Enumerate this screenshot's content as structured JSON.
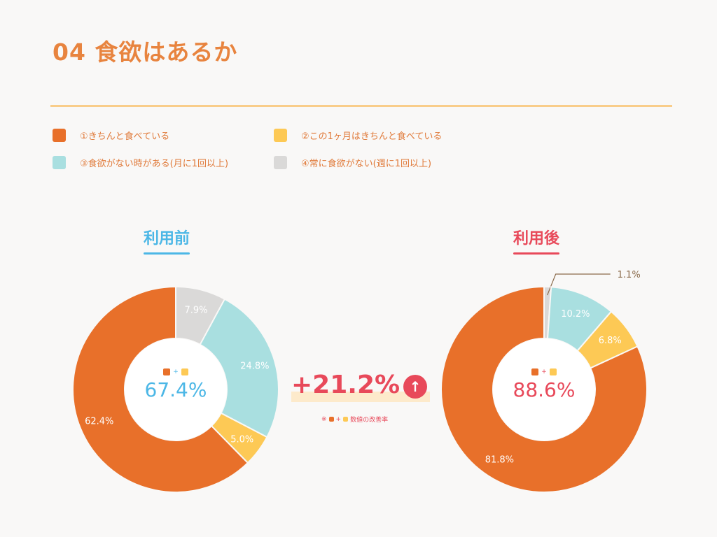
{
  "page_title": "04 食欲はあるか",
  "legend": [
    {
      "label": "①きちんと食べている",
      "color": "#e8702a"
    },
    {
      "label": "②この1ヶ月はきちんと食べている",
      "color": "#fdc955"
    },
    {
      "label": "③食欲がない時がある(月に1回以上)",
      "color": "#a9dfe0"
    },
    {
      "label": "④常に食欲がない(週に1回以上)",
      "color": "#dad9d8"
    }
  ],
  "before": {
    "heading": "利用前",
    "center_value": "67.4%",
    "accent": "#4cb7e6"
  },
  "after": {
    "heading": "利用後",
    "center_value": "88.6%",
    "accent": "#e8495a"
  },
  "improvement": {
    "value": "+21.2%",
    "arrow": "↑",
    "note": "数値の改善率",
    "note_prefix": "※",
    "plus": "+"
  },
  "center_plus": "+",
  "chart_data": [
    {
      "type": "pie",
      "title": "利用前",
      "categories": [
        "①きちんと食べている",
        "②この1ヶ月はきちんと食べている",
        "③食欲がない時がある(月に1回以上)",
        "④常に食欲がない(週に1回以上)"
      ],
      "values": [
        62.4,
        5.0,
        24.8,
        7.9
      ],
      "labels": [
        "62.4%",
        "5.0%",
        "24.8%",
        "7.9%"
      ],
      "colors": [
        "#e8702a",
        "#fdc955",
        "#a9dfe0",
        "#dad9d8"
      ]
    },
    {
      "type": "pie",
      "title": "利用後",
      "categories": [
        "①きちんと食べている",
        "②この1ヶ月はきちんと食べている",
        "③食欲がない時がある(月に1回以上)",
        "④常に食欲がない(週に1回以上)"
      ],
      "values": [
        81.8,
        6.8,
        10.2,
        1.1
      ],
      "labels": [
        "81.8%",
        "6.8%",
        "10.2%",
        "1.1%"
      ],
      "colors": [
        "#e8702a",
        "#fdc955",
        "#a9dfe0",
        "#dad9d8"
      ]
    }
  ]
}
